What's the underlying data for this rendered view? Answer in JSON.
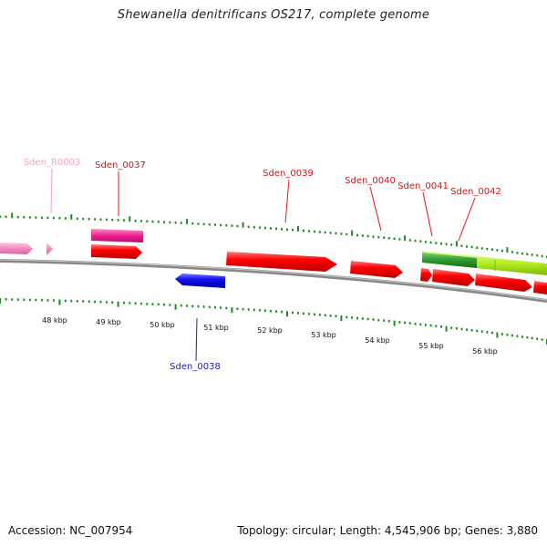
{
  "title": "Shewanella denitrificans OS217, complete genome",
  "footer": {
    "accession": "Accession: NC_007954",
    "topology": "Topology: circular; Length: 4,545,906 bp; Genes: 3,880"
  },
  "colors": {
    "cds_forward": "#ee0000",
    "cds_reverse": "#1616dd",
    "rrna": "#f080b8",
    "gene": "#e8208c",
    "misc_feature_dark": "#2f9a2f",
    "misc_feature_light": "#aaea22",
    "tick": "#1d8c1d",
    "backbone": "#808080"
  },
  "scale": {
    "unit": "kbp",
    "labels": [
      "48 kbp",
      "49 kbp",
      "50 kbp",
      "51 kbp",
      "52 kbp",
      "53 kbp",
      "54 kbp",
      "55 kbp",
      "56 kbp"
    ]
  },
  "features": [
    {
      "label": "Sden_R0003",
      "type": "rrna"
    },
    {
      "label": "Sden_0037",
      "type": "gene"
    },
    {
      "label": "Sden_0038",
      "type": "cds_reverse"
    },
    {
      "label": "Sden_0039",
      "type": "cds_forward"
    },
    {
      "label": "Sden_0040",
      "type": "cds_forward"
    },
    {
      "label": "Sden_0041",
      "type": "cds_forward"
    },
    {
      "label": "Sden_0042",
      "type": "cds_forward"
    }
  ]
}
